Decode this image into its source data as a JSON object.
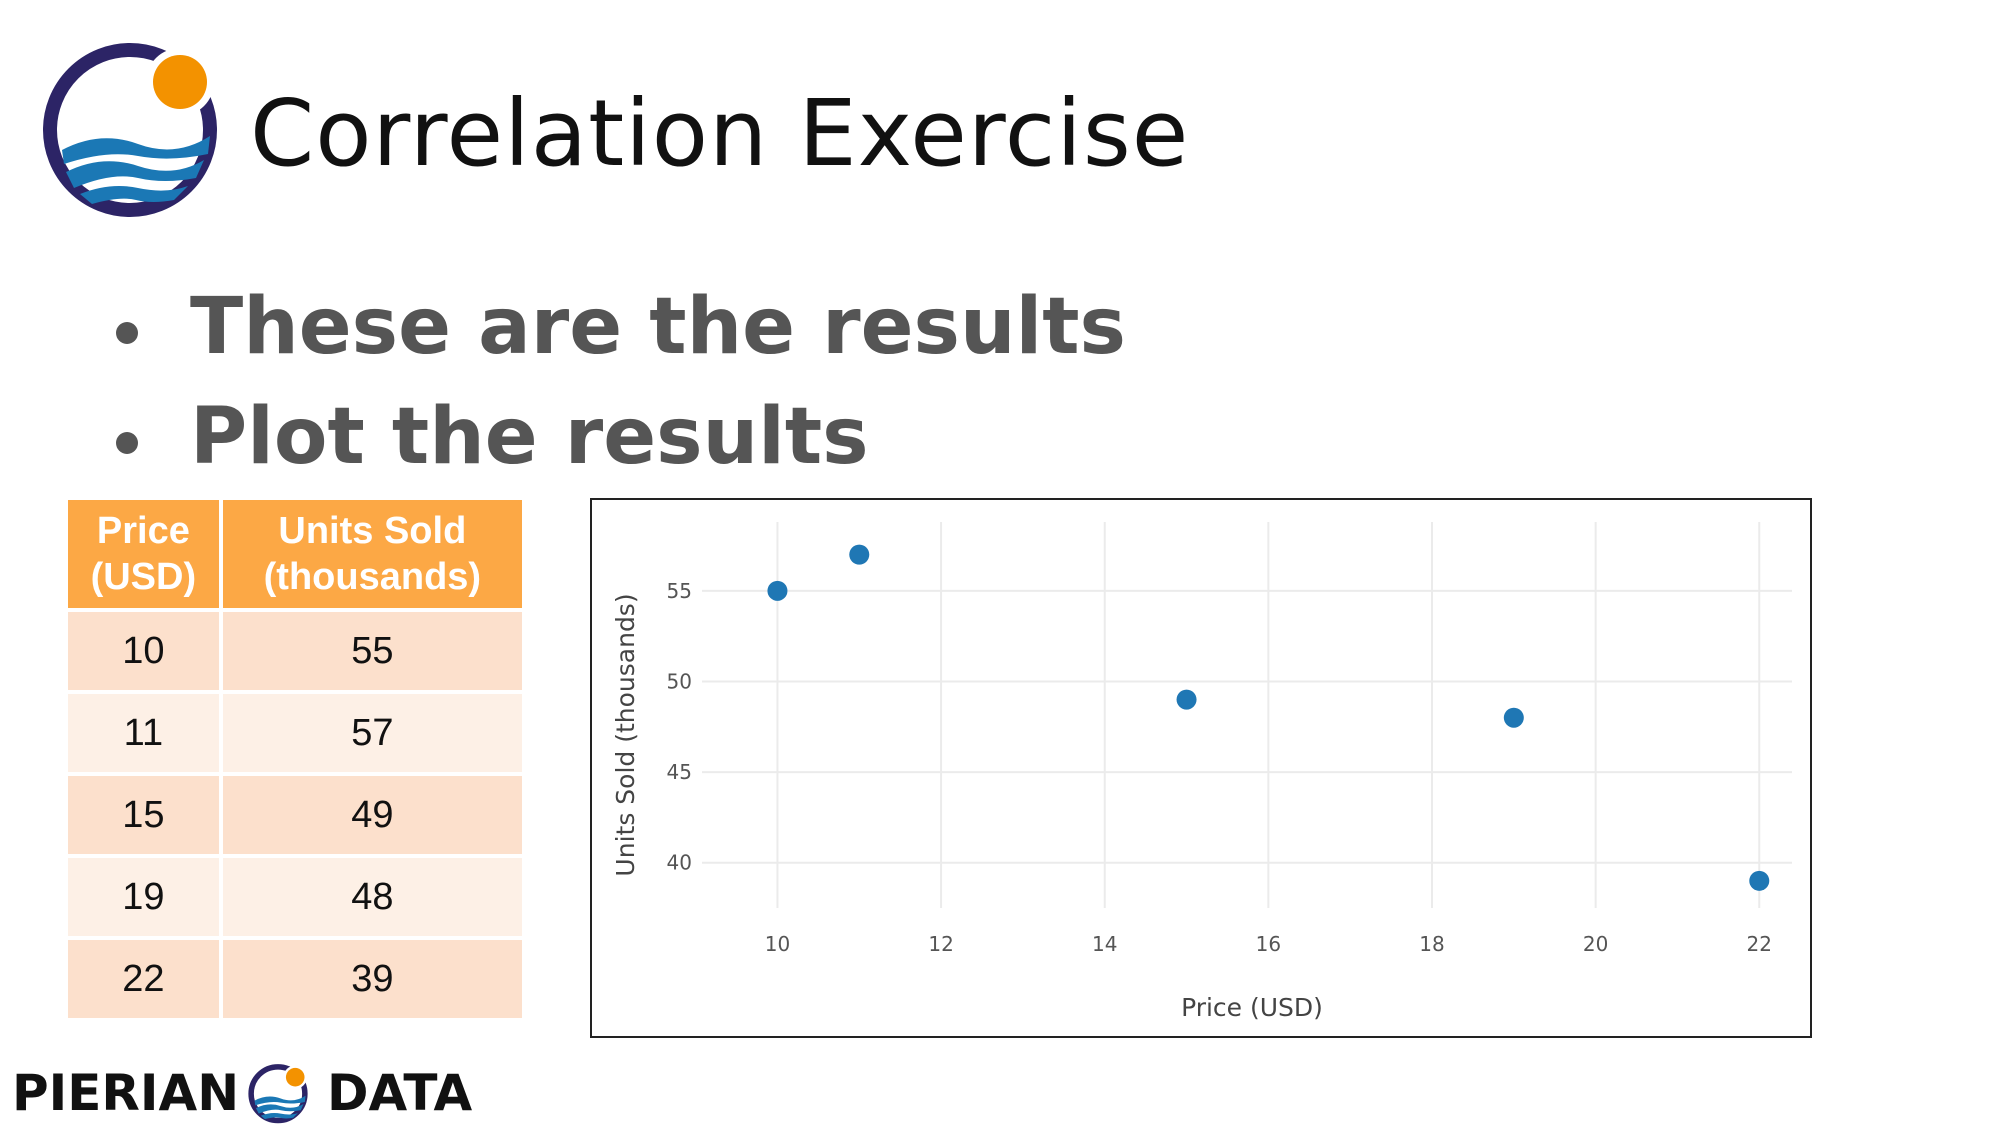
{
  "slide": {
    "title": "Correlation Exercise",
    "bullets": [
      "These are the results",
      "Plot the results"
    ]
  },
  "colors": {
    "brand_navy": "#2c2466",
    "brand_orange": "#f39200",
    "brand_blue": "#1b78b5",
    "header_orange": "#fca845",
    "row_odd": "#fce0cc",
    "row_even": "#fdf0e6",
    "point_blue": "#1f77b4"
  },
  "table": {
    "headers": [
      [
        "Price",
        "(USD)"
      ],
      [
        "Units Sold",
        "(thousands)"
      ]
    ],
    "rows": [
      [
        "10",
        "55"
      ],
      [
        "11",
        "57"
      ],
      [
        "15",
        "49"
      ],
      [
        "19",
        "48"
      ],
      [
        "22",
        "39"
      ]
    ]
  },
  "chart_data": {
    "type": "scatter",
    "x": [
      10,
      11,
      15,
      19,
      22
    ],
    "y": [
      55,
      57,
      49,
      48,
      39
    ],
    "xlabel": "Price (USD)",
    "ylabel": "Units Sold (thousands)",
    "xlim": [
      9.2,
      22.4
    ],
    "ylim": [
      37.5,
      58.8
    ],
    "xticks": [
      10,
      12,
      14,
      16,
      18,
      20,
      22
    ],
    "yticks": [
      40,
      45,
      50,
      55
    ],
    "grid": true
  },
  "footer": {
    "logo_text_left": "PIERIAN",
    "logo_text_right": "DATA",
    "icons": [
      "pierian-data-logo-icon"
    ]
  }
}
